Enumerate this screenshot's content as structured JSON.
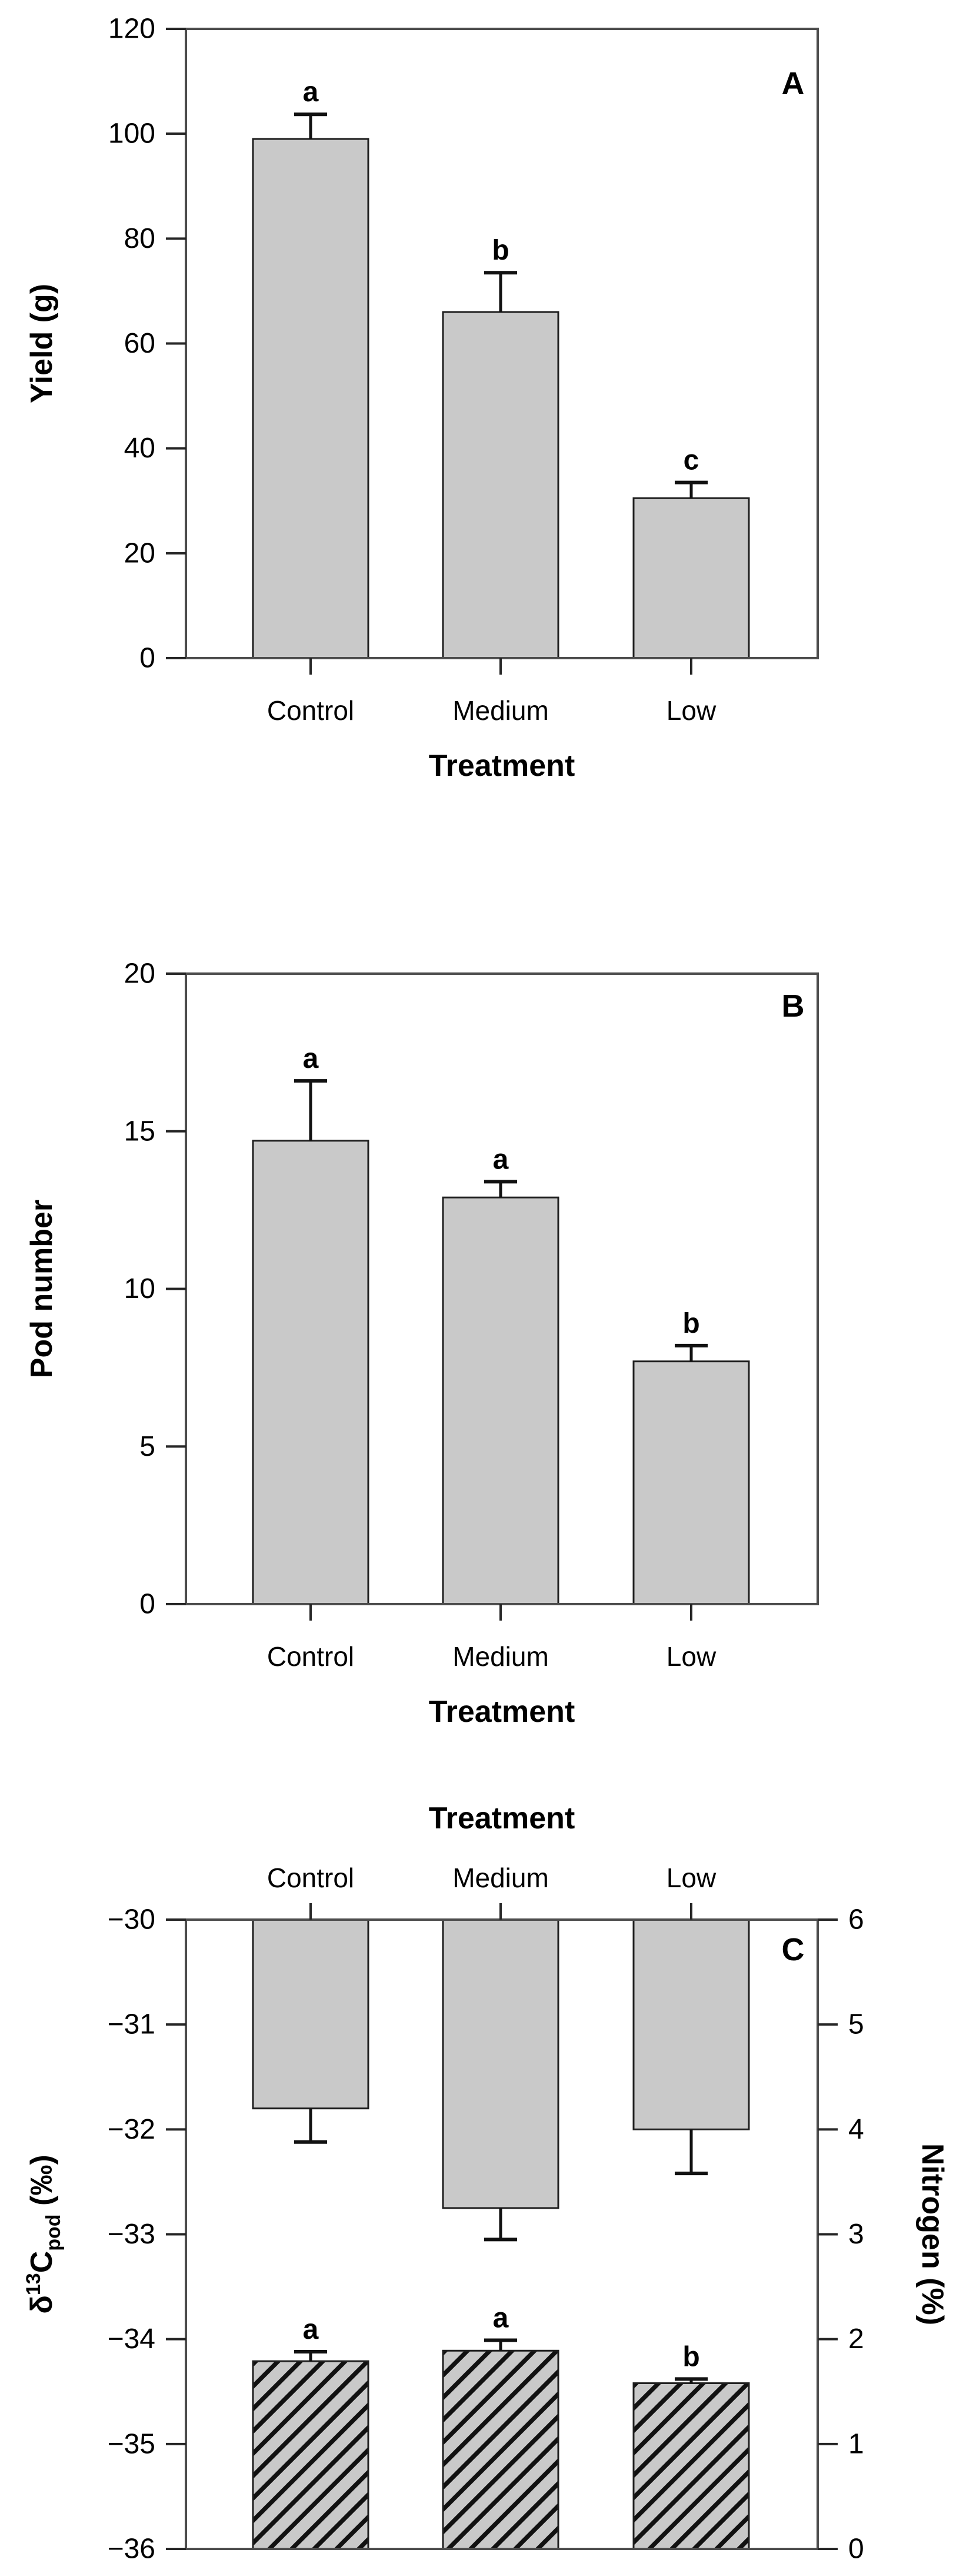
{
  "figure": {
    "background": "#ffffff",
    "treatment_axis_title": "Treatment",
    "panel_labels": [
      "A",
      "B",
      "C"
    ]
  },
  "styles": {
    "bar_fill": "#c9c9c9",
    "bar_stroke": "#1f1f1f",
    "frame_color": "#4d4d4d",
    "tick_color": "#262626",
    "text_color": "#000000",
    "hatch_line_color": "#111111",
    "error_bar_color": "#111111"
  },
  "chart_data": [
    {
      "type": "bar",
      "panel": "A",
      "title": "",
      "xlabel": "Treatment",
      "ylabel": "Yield (g)",
      "categories": [
        "Control",
        "Medium",
        "Low"
      ],
      "values": [
        99,
        66,
        30.5
      ],
      "errors": [
        4.7,
        7.5,
        3.0
      ],
      "sig_letters": [
        "a",
        "b",
        "c"
      ],
      "ylim": [
        0,
        120
      ],
      "yticks": [
        0,
        20,
        40,
        60,
        80,
        100,
        120
      ],
      "bar_style": "solid-gray",
      "legend": "none",
      "grid": false
    },
    {
      "type": "bar",
      "panel": "B",
      "title": "",
      "xlabel": "Treatment",
      "ylabel": "Pod number",
      "categories": [
        "Control",
        "Medium",
        "Low"
      ],
      "values": [
        14.7,
        12.9,
        7.7
      ],
      "errors": [
        1.9,
        0.5,
        0.5
      ],
      "sig_letters": [
        "a",
        "a",
        "b"
      ],
      "ylim": [
        0,
        20
      ],
      "yticks": [
        0,
        5,
        10,
        15,
        20
      ],
      "bar_style": "solid-gray",
      "legend": "none",
      "grid": false
    },
    {
      "type": "bar-dual-axis",
      "panel": "C",
      "title": "",
      "xlabel": "Treatment",
      "xlabel_position": "top",
      "categories": [
        "Control",
        "Medium",
        "Low"
      ],
      "series": [
        {
          "name": "delta-13-C-pod",
          "axis": "left",
          "bar_style": "solid-gray",
          "baseline": "top",
          "values": [
            -31.8,
            -32.75,
            -32.0
          ],
          "errors": [
            0.32,
            0.3,
            0.42
          ],
          "sig_letters": null
        },
        {
          "name": "Nitrogen",
          "axis": "right",
          "bar_style": "hatched",
          "baseline": "bottom",
          "values": [
            1.79,
            1.89,
            1.58
          ],
          "errors": [
            0.09,
            0.1,
            0.04
          ],
          "sig_letters": [
            "a",
            "a",
            "b"
          ]
        }
      ],
      "left_axis": {
        "label_parts": {
          "symbol": "δ",
          "superscript": "13",
          "letter": "C",
          "subscript": "pod",
          "suffix": " (‰)"
        },
        "ylim": [
          -36,
          -30
        ],
        "yticks": [
          -30,
          -31,
          -32,
          -33,
          -34,
          -35,
          -36
        ]
      },
      "right_axis": {
        "label": "Nitrogen (%)",
        "ylim": [
          0,
          6
        ],
        "yticks": [
          0,
          1,
          2,
          3,
          4,
          5,
          6
        ]
      },
      "legend": "none",
      "grid": false
    }
  ]
}
